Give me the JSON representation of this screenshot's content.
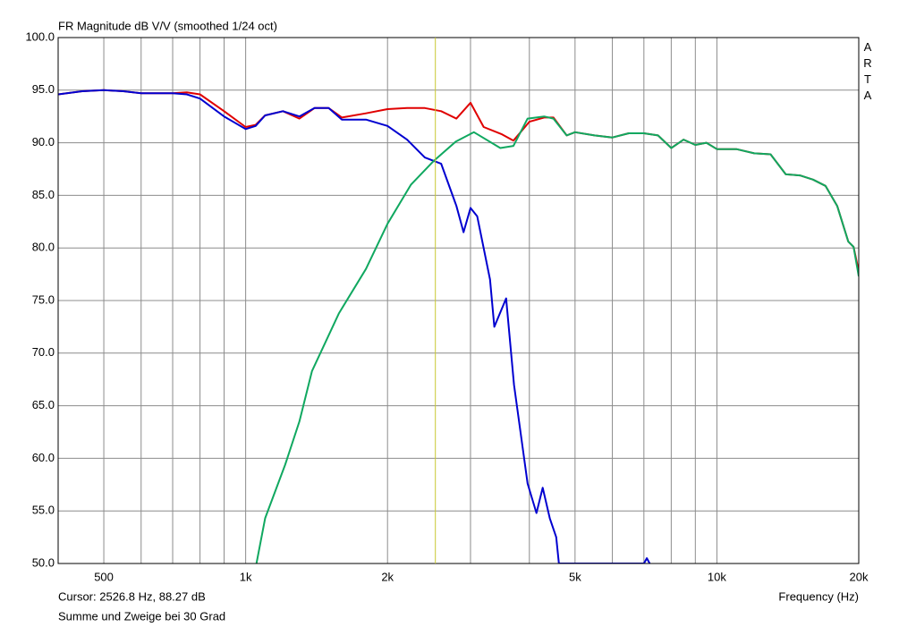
{
  "chart_data": {
    "type": "line",
    "title": "FR Magnitude dB V/V (smoothed 1/24 oct)",
    "brand": "ARTA",
    "x_label": "Frequency (Hz)",
    "footnote": "Summe und Zweige bei 30 Grad",
    "xscale": "log",
    "xlim": [
      400,
      20000
    ],
    "xticks": [
      500,
      {
        "value": 1000,
        "label": "1k"
      },
      {
        "value": 2000,
        "label": "2k"
      },
      {
        "value": 5000,
        "label": "5k"
      },
      {
        "value": 10000,
        "label": "10k"
      },
      {
        "value": 20000,
        "label": "20k"
      }
    ],
    "xminor": [
      600,
      700,
      800,
      900,
      3000,
      4000,
      6000,
      7000,
      8000,
      9000
    ],
    "ylim": [
      50,
      100
    ],
    "yticks": [
      {
        "value": 50,
        "label": "50.0"
      },
      {
        "value": 55,
        "label": "55.0"
      },
      {
        "value": 60,
        "label": "60.0"
      },
      {
        "value": 65,
        "label": "65.0"
      },
      {
        "value": 70,
        "label": "70.0"
      },
      {
        "value": 75,
        "label": "75.0"
      },
      {
        "value": 80,
        "label": "80.0"
      },
      {
        "value": 85,
        "label": "85.0"
      },
      {
        "value": 90,
        "label": "90.0"
      },
      {
        "value": 95,
        "label": "95.0"
      },
      {
        "value": 100,
        "label": "100.0"
      }
    ],
    "grid": true,
    "cursor": {
      "x": 2526.8,
      "label": "Cursor: 2526.8 Hz, 88.27 dB",
      "color": "#c8c832"
    },
    "series": [
      {
        "color": "#e00000",
        "x": [
          400,
          450,
          500,
          550,
          600,
          700,
          750,
          800,
          900,
          1000,
          1050,
          1100,
          1200,
          1300,
          1400,
          1500,
          1600,
          1800,
          2000,
          2200,
          2400,
          2600,
          2800,
          3000,
          3200,
          3500,
          3700,
          4000,
          4300,
          4500,
          4800,
          5000,
          5500,
          6000,
          6500,
          7000,
          7500,
          8000,
          8500,
          9000,
          9500,
          10000,
          11000,
          12000,
          13000,
          14000,
          15000,
          16000,
          17000,
          18000,
          19000,
          19500,
          20000
        ],
        "values": [
          94.6,
          94.9,
          95.0,
          94.9,
          94.7,
          94.7,
          94.8,
          94.6,
          93.0,
          91.5,
          91.7,
          92.6,
          93.0,
          92.3,
          93.3,
          93.3,
          92.4,
          92.8,
          93.2,
          93.3,
          93.3,
          93.0,
          92.3,
          93.8,
          91.5,
          90.8,
          90.2,
          92.0,
          92.4,
          92.4,
          90.7,
          91.0,
          90.7,
          90.5,
          90.9,
          90.9,
          90.7,
          89.5,
          90.3,
          89.8,
          90.0,
          89.4,
          89.4,
          89.0,
          88.9,
          87.0,
          86.9,
          86.5,
          85.9,
          84.0,
          80.6,
          80.1,
          77.8
        ]
      },
      {
        "color": "#0000d0",
        "x": [
          400,
          450,
          500,
          550,
          600,
          700,
          750,
          800,
          900,
          1000,
          1050,
          1100,
          1200,
          1300,
          1400,
          1500,
          1600,
          1800,
          2000,
          2200,
          2400,
          2600,
          2800,
          2900,
          3000,
          3100,
          3300,
          3370,
          3570,
          3710,
          3965,
          4140,
          4270,
          4420,
          4560,
          4620,
          7000,
          7100,
          7200
        ],
        "values": [
          94.6,
          94.9,
          95.0,
          94.9,
          94.7,
          94.7,
          94.6,
          94.2,
          92.5,
          91.3,
          91.6,
          92.6,
          93.0,
          92.5,
          93.3,
          93.3,
          92.2,
          92.2,
          91.6,
          90.3,
          88.6,
          88.0,
          84.0,
          81.5,
          83.8,
          83.0,
          77.0,
          72.5,
          75.2,
          67.0,
          57.6,
          54.8,
          57.2,
          54.3,
          52.5,
          50.0,
          50.0,
          50.5,
          50.0
        ]
      },
      {
        "color": "#10a860",
        "x": [
          1054,
          1100,
          1213,
          1300,
          1383,
          1578,
          1800,
          2000,
          2242,
          2510,
          2790,
          3050,
          3470,
          3700,
          3965,
          4300,
          4500,
          4800,
          5000,
          5500,
          6000,
          6500,
          7000,
          7500,
          8000,
          8500,
          9000,
          9500,
          10000,
          11000,
          12000,
          13000,
          14000,
          15000,
          16000,
          17000,
          18000,
          19000,
          19500,
          20000
        ],
        "values": [
          50.0,
          54.3,
          59.4,
          63.5,
          68.3,
          73.8,
          78.0,
          82.3,
          86.0,
          88.3,
          90.1,
          91.0,
          89.5,
          89.7,
          92.3,
          92.5,
          92.3,
          90.7,
          91.0,
          90.7,
          90.5,
          90.9,
          90.9,
          90.7,
          89.5,
          90.3,
          89.8,
          90.0,
          89.4,
          89.4,
          89.0,
          88.9,
          87.0,
          86.9,
          86.5,
          85.9,
          84.0,
          80.6,
          80.1,
          77.3
        ]
      }
    ]
  }
}
